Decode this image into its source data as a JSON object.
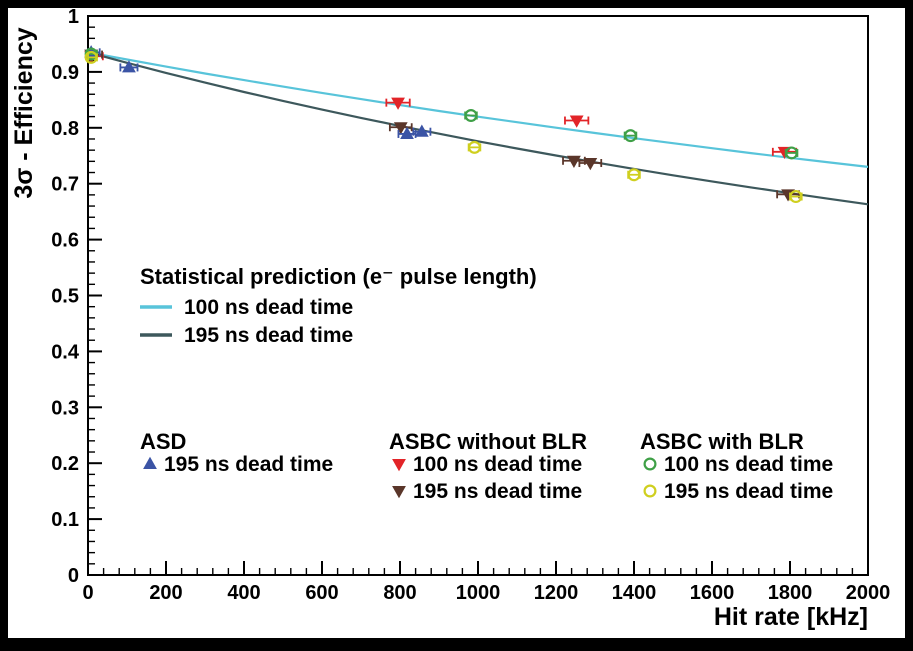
{
  "window": {
    "background": "#000000",
    "canvas_background": "#ffffff",
    "frame_color": "#000000"
  },
  "chart_data": {
    "type": "scatter",
    "title": "",
    "xlabel": "Hit rate [kHz]",
    "ylabel": "3σ - Efficiency",
    "xlim": [
      0,
      2000
    ],
    "ylim": [
      0,
      1
    ],
    "x_ticks": [
      0,
      200,
      400,
      600,
      800,
      1000,
      1200,
      1400,
      1600,
      1800,
      2000
    ],
    "x_tick_labels": [
      "0",
      "200",
      "400",
      "600",
      "800",
      "1000",
      "1200",
      "1400",
      "1600",
      "1800",
      "2000"
    ],
    "y_ticks": [
      0,
      0.1,
      0.2,
      0.3,
      0.4,
      0.5,
      0.6,
      0.7,
      0.8,
      0.9,
      1
    ],
    "y_tick_labels": [
      "0",
      "0.1",
      "0.2",
      "0.3",
      "0.4",
      "0.5",
      "0.6",
      "0.7",
      "0.8",
      "0.9",
      "1"
    ],
    "x_minor_step": 40,
    "y_minor_step": 0.02,
    "grid": false,
    "curves": [
      {
        "name": "100 ns dead time",
        "color": "#58c4da",
        "points": [
          [
            0,
            0.935
          ],
          [
            100,
            0.9221
          ],
          [
            200,
            0.9095
          ],
          [
            300,
            0.8972
          ],
          [
            400,
            0.8853
          ],
          [
            500,
            0.8737
          ],
          [
            600,
            0.8624
          ],
          [
            700,
            0.8513
          ],
          [
            800,
            0.8406
          ],
          [
            900,
            0.8301
          ],
          [
            1000,
            0.8199
          ],
          [
            1100,
            0.81
          ],
          [
            1200,
            0.8002
          ],
          [
            1300,
            0.7907
          ],
          [
            1400,
            0.7814
          ],
          [
            1500,
            0.7724
          ],
          [
            1600,
            0.7635
          ],
          [
            1700,
            0.7548
          ],
          [
            1800,
            0.7464
          ],
          [
            1900,
            0.7381
          ],
          [
            2000,
            0.73
          ]
        ]
      },
      {
        "name": "195 ns dead time",
        "color": "#3d585c",
        "points": [
          [
            0,
            0.935
          ],
          [
            100,
            0.9162
          ],
          [
            200,
            0.8982
          ],
          [
            300,
            0.8808
          ],
          [
            400,
            0.8641
          ],
          [
            500,
            0.8481
          ],
          [
            600,
            0.8326
          ],
          [
            700,
            0.8177
          ],
          [
            800,
            0.8033
          ],
          [
            900,
            0.7894
          ],
          [
            1000,
            0.7759
          ],
          [
            1100,
            0.7629
          ],
          [
            1200,
            0.7504
          ],
          [
            1300,
            0.7383
          ],
          [
            1400,
            0.7265
          ],
          [
            1500,
            0.7151
          ],
          [
            1600,
            0.7041
          ],
          [
            1700,
            0.6934
          ],
          [
            1800,
            0.683
          ],
          [
            1900,
            0.6729
          ],
          [
            2000,
            0.6631
          ]
        ]
      }
    ],
    "series": [
      {
        "name": "ASBC without BLR 100 ns dead time",
        "marker": "triangle-down",
        "color": "#e22428",
        "xerr": 30,
        "points": [
          [
            8,
            0.928
          ],
          [
            795,
            0.845
          ],
          [
            1253,
            0.813
          ],
          [
            1786,
            0.757
          ]
        ]
      },
      {
        "name": "ASBC without BLR 195 ns dead time",
        "marker": "triangle-down",
        "color": "#5a362a",
        "xerr": 28,
        "points": [
          [
            8,
            0.931
          ],
          [
            802,
            0.801
          ],
          [
            1246,
            0.741
          ],
          [
            1288,
            0.737
          ],
          [
            1795,
            0.681
          ]
        ]
      },
      {
        "name": "ASD 195 ns dead time",
        "marker": "triangle-up",
        "color": "#3b54a5",
        "xerr": 22,
        "points": [
          [
            8,
            0.935
          ],
          [
            105,
            0.908
          ],
          [
            818,
            0.789
          ],
          [
            856,
            0.793
          ]
        ]
      },
      {
        "name": "ASBC with BLR 100 ns dead time",
        "marker": "circle-open",
        "color": "#3fa047",
        "xerr": 15,
        "points": [
          [
            8,
            0.932
          ],
          [
            982,
            0.822
          ],
          [
            1391,
            0.786
          ],
          [
            1804,
            0.755
          ]
        ]
      },
      {
        "name": "ASBC with BLR 195 ns dead time",
        "marker": "circle-open",
        "color": "#cfcf1f",
        "xerr": 15,
        "points": [
          [
            8,
            0.926
          ],
          [
            991,
            0.765
          ],
          [
            1400,
            0.716
          ],
          [
            1815,
            0.677
          ]
        ]
      }
    ],
    "legends": {
      "prediction": {
        "title": "Statistical prediction (e⁻ pulse length)",
        "entries": [
          {
            "label": "100 ns dead time",
            "color": "#58c4da"
          },
          {
            "label": "195 ns dead time",
            "color": "#3d585c"
          }
        ]
      },
      "markers": {
        "columns": [
          {
            "title": "ASD",
            "entries": [
              {
                "label": "195 ns dead time",
                "marker": "triangle-up",
                "color": "#3b54a5"
              }
            ]
          },
          {
            "title": "ASBC without BLR",
            "entries": [
              {
                "label": "100 ns dead time",
                "marker": "triangle-down",
                "color": "#e22428"
              },
              {
                "label": "195 ns dead time",
                "marker": "triangle-down",
                "color": "#5a362a"
              }
            ]
          },
          {
            "title": "ASBC with BLR",
            "entries": [
              {
                "label": "100 ns dead time",
                "marker": "circle-open",
                "color": "#3fa047"
              },
              {
                "label": "195 ns dead time",
                "marker": "circle-open",
                "color": "#cfcf1f"
              }
            ]
          }
        ]
      }
    }
  }
}
